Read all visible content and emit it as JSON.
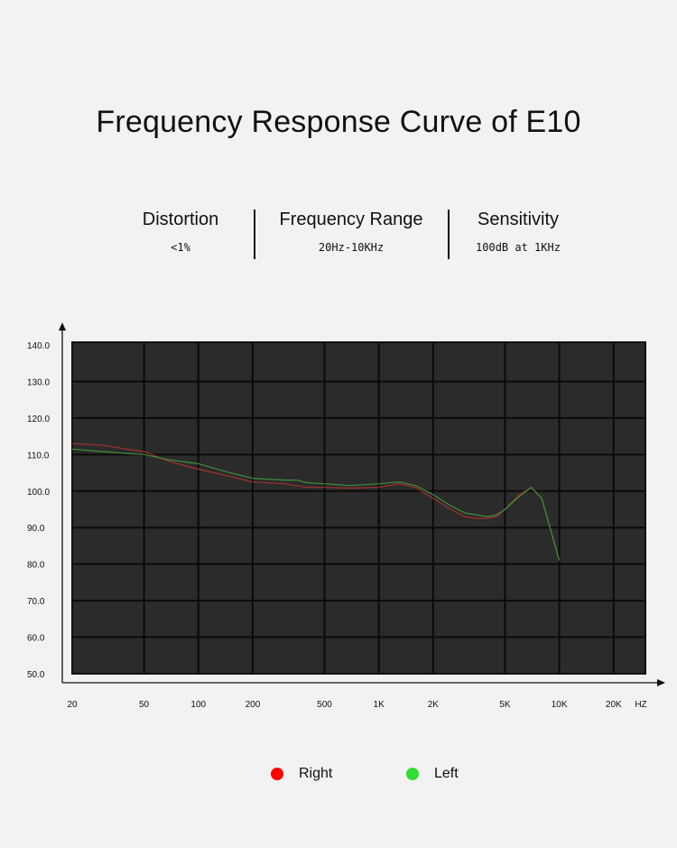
{
  "title": "Frequency Response Curve of E10",
  "specs": [
    {
      "label": "Distortion",
      "value": "<1%"
    },
    {
      "label": "Frequency Range",
      "value": "20Hz-10KHz"
    },
    {
      "label": "Sensitivity",
      "value": "100dB at 1KHz"
    }
  ],
  "colors": {
    "background": "#f2f2f2",
    "plot_bg": "#2b2b2b",
    "grid": "#0a0a0a",
    "right": "#ff0000",
    "left": "#33dd33",
    "right_line": "#a3322c",
    "left_line": "#3f8f3a"
  },
  "legend": [
    {
      "label": "Right",
      "color": "#ff0000"
    },
    {
      "label": "Left",
      "color": "#33dd33"
    }
  ],
  "chart_data": {
    "type": "line",
    "title": "",
    "xlabel": "",
    "x_unit_label": "HZ",
    "ylabel": "",
    "x_scale": "log",
    "xlim": [
      20,
      30000
    ],
    "ylim": [
      50,
      140
    ],
    "x_ticks": [
      {
        "value": 20,
        "label": "20"
      },
      {
        "value": 50,
        "label": "50"
      },
      {
        "value": 100,
        "label": "100"
      },
      {
        "value": 200,
        "label": "200"
      },
      {
        "value": 500,
        "label": "500"
      },
      {
        "value": 1000,
        "label": "1K"
      },
      {
        "value": 2000,
        "label": "2K"
      },
      {
        "value": 5000,
        "label": "5K"
      },
      {
        "value": 10000,
        "label": "10K"
      },
      {
        "value": 20000,
        "label": "20K"
      }
    ],
    "y_ticks": [
      "140.0",
      "130.0",
      "120.0",
      "110.0",
      "100.0",
      "90.0",
      "80.0",
      "70.0",
      "60.0",
      "50.0"
    ],
    "grid": true,
    "series": [
      {
        "name": "Right",
        "x": [
          20,
          30,
          40,
          50,
          70,
          100,
          150,
          200,
          300,
          400,
          500,
          700,
          1000,
          1300,
          1600,
          2000,
          2500,
          3000,
          3500,
          4000,
          4500,
          5000,
          6000,
          7000,
          8000,
          10000
        ],
        "y": [
          113,
          112.5,
          111.5,
          110.8,
          108,
          106,
          104,
          102.5,
          102,
          101,
          101,
          100.8,
          101,
          102,
          101,
          98,
          95,
          93,
          92.5,
          92.5,
          93,
          95,
          99,
          101,
          98,
          81
        ]
      },
      {
        "name": "Left",
        "x": [
          20,
          30,
          40,
          50,
          70,
          100,
          150,
          200,
          300,
          350,
          400,
          500,
          700,
          1000,
          1300,
          1600,
          2000,
          2500,
          3000,
          3500,
          4000,
          4500,
          5000,
          6000,
          7000,
          8000,
          10000
        ],
        "y": [
          111.5,
          110.8,
          110.3,
          110,
          108.5,
          107.5,
          105,
          103.5,
          103,
          103,
          102.3,
          102,
          101.5,
          102,
          102.5,
          101.5,
          99,
          96,
          94,
          93.5,
          93,
          93.5,
          95,
          98.5,
          101,
          98,
          81
        ]
      }
    ]
  }
}
